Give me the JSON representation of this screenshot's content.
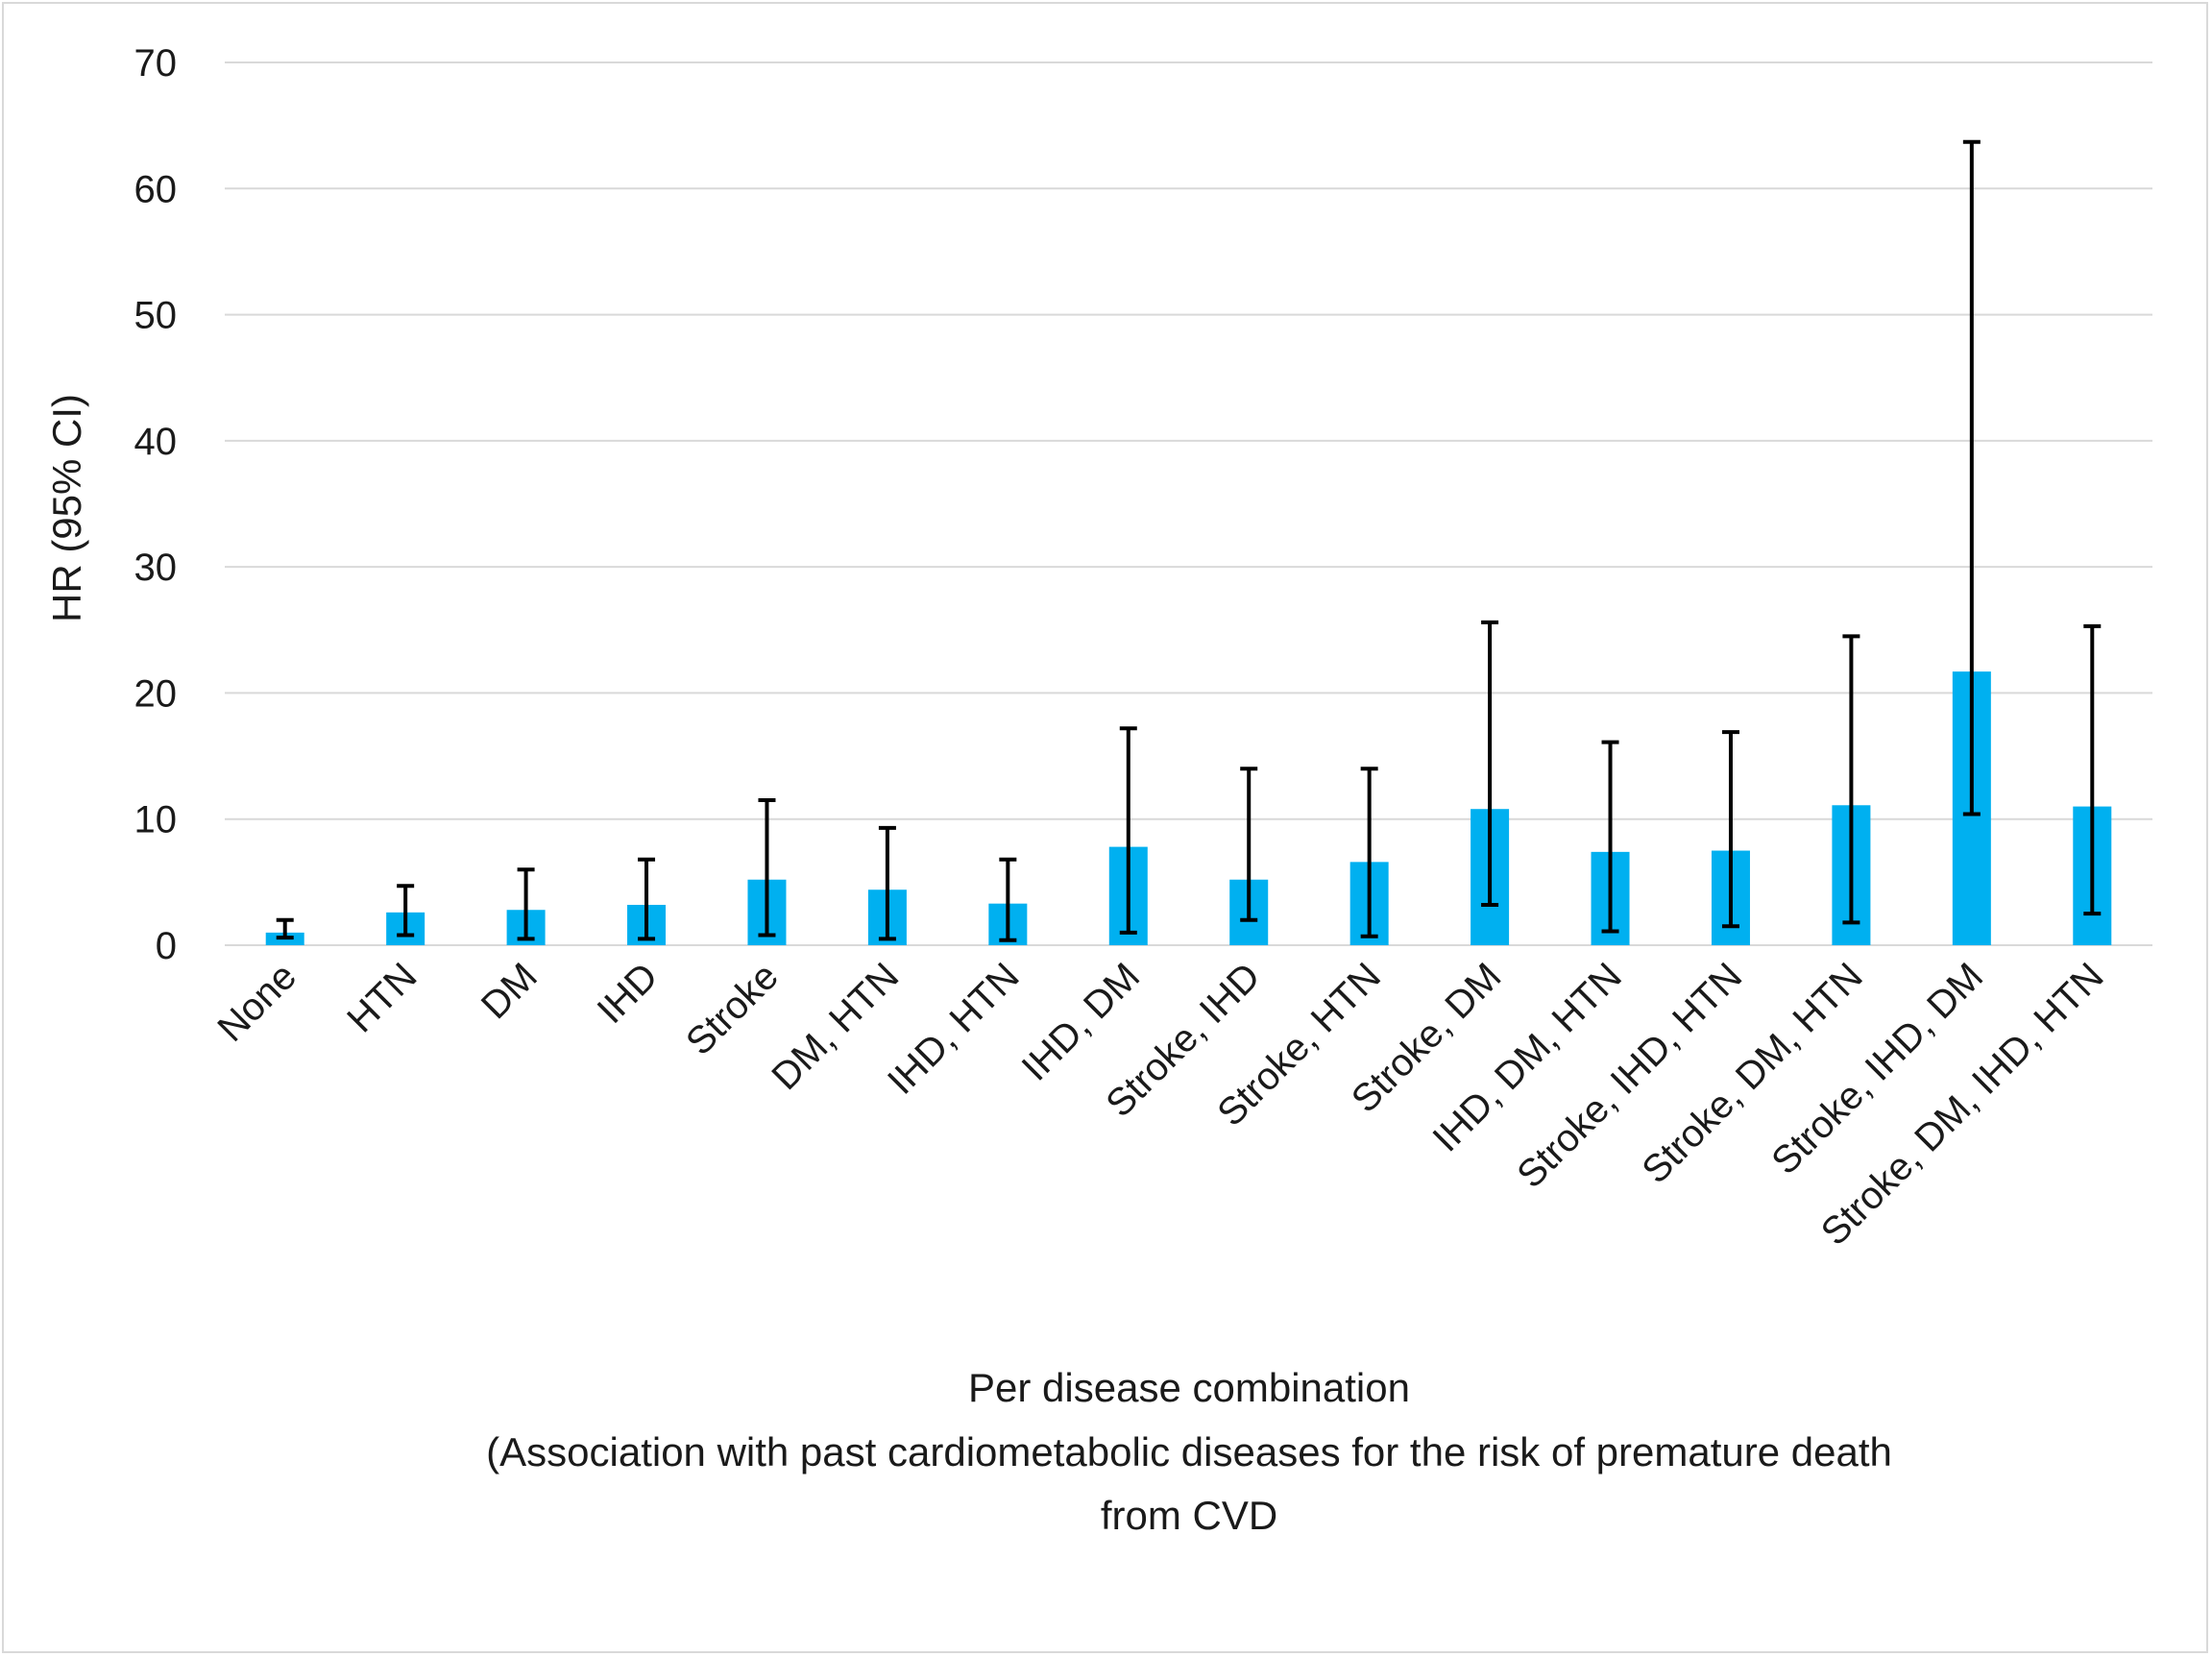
{
  "chart_data": {
    "type": "bar",
    "ylabel": "HR (95% CI)",
    "xlabel": "Per disease combination",
    "caption_lines": [
      "(Association with past cardiometabolic diseases for the risk of premature death",
      "from CVD"
    ],
    "ylim": [
      0,
      70
    ],
    "yticks": [
      0,
      10,
      20,
      30,
      40,
      50,
      60,
      70
    ],
    "grid": true,
    "bar_color": "#00b0f0",
    "error_bar_color": "#000000",
    "categories": [
      "None",
      "HTN",
      "DM",
      "IHD",
      "Stroke",
      "DM, HTN",
      "IHD, HTN",
      "IHD, DM",
      "Stroke, IHD",
      "Stroke, HTN",
      "Stroke, DM",
      "IHD, DM, HTN",
      "Stroke, IHD, HTN",
      "Stroke, DM, HTN",
      "Stroke, IHD, DM",
      "Stroke, DM, IHD, HTN"
    ],
    "values": [
      1.0,
      2.6,
      2.8,
      3.2,
      5.2,
      4.4,
      3.3,
      7.8,
      5.2,
      6.6,
      10.8,
      7.4,
      7.5,
      11.1,
      21.7,
      11.0
    ],
    "ci_lower": [
      0.6,
      0.8,
      0.5,
      0.5,
      0.8,
      0.5,
      0.4,
      1.0,
      2.0,
      0.7,
      3.2,
      1.1,
      1.5,
      1.8,
      10.4,
      2.5
    ],
    "ci_upper": [
      2.0,
      4.7,
      6.0,
      6.8,
      11.5,
      9.3,
      6.8,
      17.2,
      14.0,
      14.0,
      25.6,
      16.1,
      16.9,
      24.5,
      63.7,
      25.3
    ]
  }
}
